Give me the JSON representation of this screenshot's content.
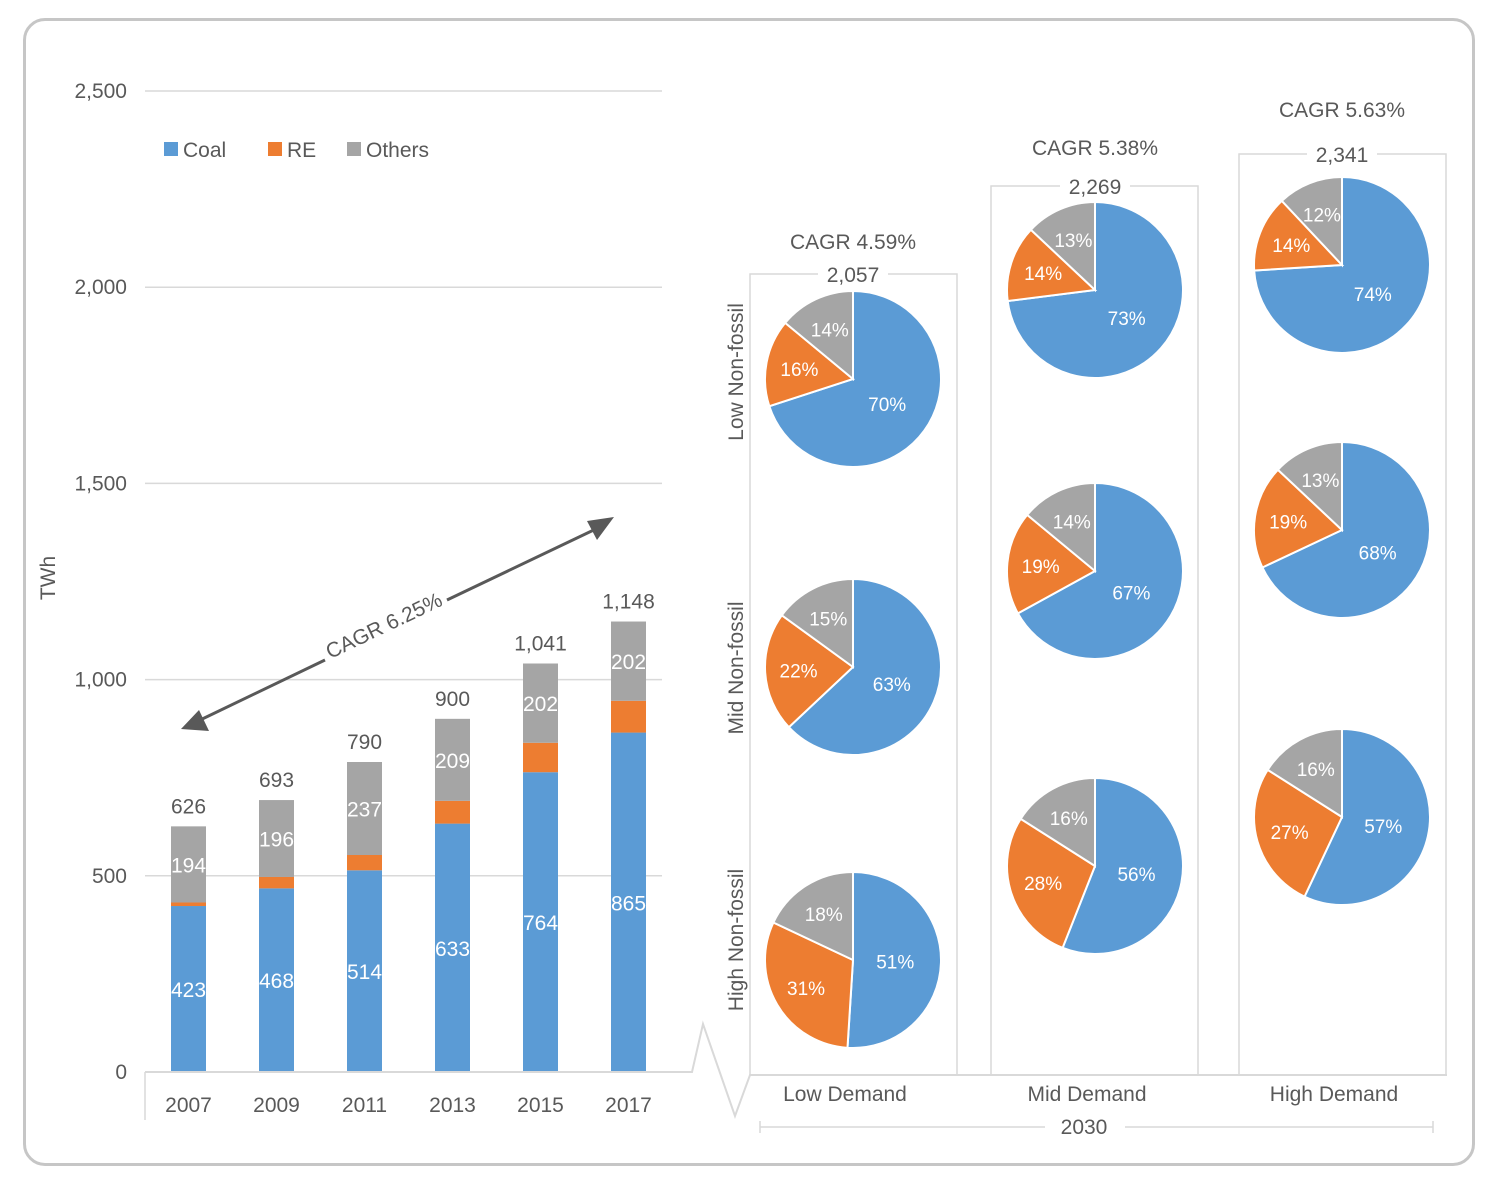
{
  "colors": {
    "coal": "#5b9bd5",
    "re": "#ed7d31",
    "others": "#a5a5a5",
    "axis_text": "#595959",
    "grid": "#d9d9d9",
    "frame": "#c6c6c6",
    "arrow": "#595959"
  },
  "chart_data": [
    {
      "type": "bar",
      "stacked": true,
      "title": "",
      "xlabel": "",
      "ylabel": "TWh",
      "ylim": [
        0,
        2500
      ],
      "yticks": [
        0,
        500,
        1000,
        1500,
        2000,
        2500
      ],
      "ytick_labels": [
        "0",
        "500",
        "1,000",
        "1,500",
        "2,000",
        "2,500"
      ],
      "grid": true,
      "legend_position": "top-left",
      "categories": [
        "2007",
        "2009",
        "2011",
        "2013",
        "2015",
        "2017"
      ],
      "series": [
        {
          "name": "Coal",
          "color_key": "coal",
          "values": [
            423,
            468,
            514,
            633,
            764,
            865
          ],
          "labels": [
            "423",
            "468",
            "514",
            "633",
            "764",
            "865"
          ]
        },
        {
          "name": "RE",
          "color_key": "re",
          "values": [
            9,
            29,
            39,
            58,
            75,
            81
          ],
          "labels": [
            "",
            "",
            "",
            "",
            "",
            ""
          ]
        },
        {
          "name": "Others",
          "color_key": "others",
          "values": [
            194,
            196,
            237,
            209,
            202,
            202
          ],
          "labels": [
            "194",
            "196",
            "237",
            "209",
            "202",
            "202"
          ]
        }
      ],
      "totals": [
        626,
        693,
        790,
        900,
        1041,
        1148
      ],
      "total_labels": [
        "626",
        "693",
        "790",
        "900",
        "1,041",
        "1,148"
      ],
      "annotation": {
        "text": "CAGR 6.25%",
        "kind": "double-arrow"
      }
    },
    {
      "type": "pie",
      "group_label": "2030",
      "row_labels": [
        "Low Non-fossil",
        "Mid Non-fossil",
        "High Non-fossil"
      ],
      "slice_order": [
        "Coal",
        "RE",
        "Others"
      ],
      "columns": [
        {
          "label": "Low Demand",
          "cagr": "CAGR 4.59%",
          "total": 2057,
          "total_label": "2,057",
          "pies": [
            {
              "row": "Low Non-fossil",
              "values": [
                70,
                16,
                14
              ],
              "labels": [
                "70%",
                "16%",
                "14%"
              ]
            },
            {
              "row": "Mid Non-fossil",
              "values": [
                63,
                22,
                15
              ],
              "labels": [
                "63%",
                "22%",
                "15%"
              ]
            },
            {
              "row": "High Non-fossil",
              "values": [
                51,
                31,
                18
              ],
              "labels": [
                "51%",
                "31%",
                "18%"
              ]
            }
          ]
        },
        {
          "label": "Mid Demand",
          "cagr": "CAGR 5.38%",
          "total": 2269,
          "total_label": "2,269",
          "pies": [
            {
              "row": "Low Non-fossil",
              "values": [
                73,
                14,
                13
              ],
              "labels": [
                "73%",
                "14%",
                "13%"
              ]
            },
            {
              "row": "Mid Non-fossil",
              "values": [
                67,
                19,
                14
              ],
              "labels": [
                "67%",
                "19%",
                "14%"
              ]
            },
            {
              "row": "High Non-fossil",
              "values": [
                56,
                28,
                16
              ],
              "labels": [
                "56%",
                "28%",
                "16%"
              ]
            }
          ]
        },
        {
          "label": "High Demand",
          "cagr": "CAGR 5.63%",
          "total": 2341,
          "total_label": "2,341",
          "pies": [
            {
              "row": "Low Non-fossil",
              "values": [
                74,
                14,
                12
              ],
              "labels": [
                "74%",
                "14%",
                "12%"
              ]
            },
            {
              "row": "Mid Non-fossil",
              "values": [
                68,
                19,
                13
              ],
              "labels": [
                "68%",
                "19%",
                "13%"
              ]
            },
            {
              "row": "High Non-fossil",
              "values": [
                57,
                27,
                16
              ],
              "labels": [
                "57%",
                "27%",
                "16%"
              ]
            }
          ]
        }
      ]
    }
  ]
}
